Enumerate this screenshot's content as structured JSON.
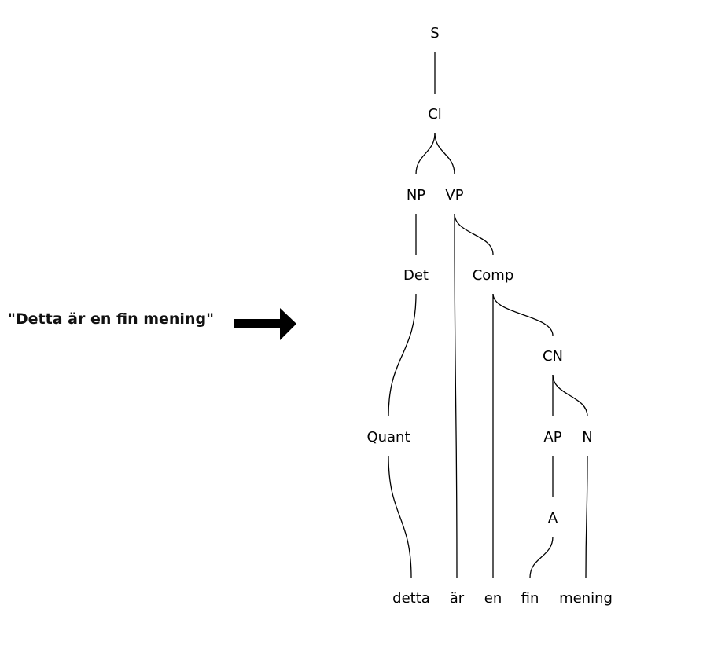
{
  "sentence": "\"Detta är en fin mening\"",
  "arrow_icon": "right-arrow-icon",
  "tree": {
    "nodes": [
      {
        "id": "S",
        "label": "S"
      },
      {
        "id": "Cl",
        "label": "Cl"
      },
      {
        "id": "NP",
        "label": "NP"
      },
      {
        "id": "VP",
        "label": "VP"
      },
      {
        "id": "Det",
        "label": "Det"
      },
      {
        "id": "Comp",
        "label": "Comp"
      },
      {
        "id": "CN",
        "label": "CN"
      },
      {
        "id": "Quant",
        "label": "Quant"
      },
      {
        "id": "AP",
        "label": "AP"
      },
      {
        "id": "N",
        "label": "N"
      },
      {
        "id": "A",
        "label": "A"
      },
      {
        "id": "w_detta",
        "label": "detta"
      },
      {
        "id": "w_ar",
        "label": "är"
      },
      {
        "id": "w_en",
        "label": "en"
      },
      {
        "id": "w_fin",
        "label": "fin"
      },
      {
        "id": "w_mening",
        "label": "mening"
      }
    ],
    "edges": [
      [
        "S",
        "Cl"
      ],
      [
        "Cl",
        "NP"
      ],
      [
        "Cl",
        "VP"
      ],
      [
        "NP",
        "Det"
      ],
      [
        "Det",
        "Quant"
      ],
      [
        "Quant",
        "w_detta"
      ],
      [
        "VP",
        "w_ar"
      ],
      [
        "VP",
        "Comp"
      ],
      [
        "Comp",
        "w_en"
      ],
      [
        "Comp",
        "CN"
      ],
      [
        "CN",
        "AP"
      ],
      [
        "AP",
        "A"
      ],
      [
        "A",
        "w_fin"
      ],
      [
        "CN",
        "N"
      ],
      [
        "N",
        "w_mening"
      ]
    ]
  }
}
